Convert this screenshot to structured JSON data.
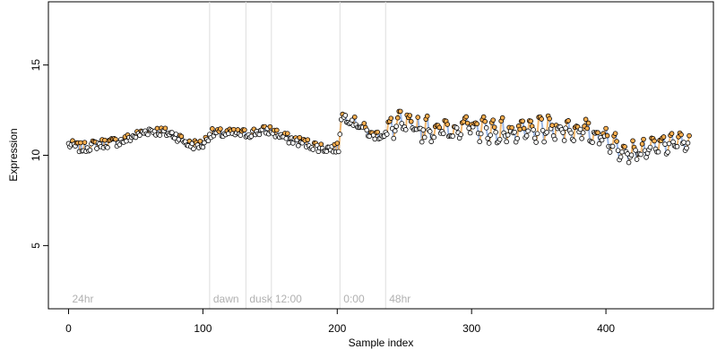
{
  "chart_data": {
    "type": "scatter",
    "xlabel": "Sample index",
    "ylabel": "Expression",
    "xlim": [
      -15,
      480
    ],
    "ylim": [
      1.5,
      18.5
    ],
    "x_ticks": [
      0,
      100,
      200,
      300,
      400
    ],
    "y_ticks": [
      5,
      10,
      15
    ],
    "grid": false,
    "period_markers": [
      {
        "label": "24hr",
        "x": 0,
        "line": false
      },
      {
        "label": "dawn",
        "x": 105,
        "line": true
      },
      {
        "label": "dusk",
        "x": 132,
        "line": true
      },
      {
        "label": "12:00",
        "x": 151,
        "line": true
      },
      {
        "label": "0:00",
        "x": 202,
        "line": true
      },
      {
        "label": "48hr",
        "x": 236,
        "line": true
      }
    ],
    "anchors": [
      [
        0,
        10.6
      ],
      [
        10,
        10.4
      ],
      [
        20,
        10.6
      ],
      [
        30,
        10.7
      ],
      [
        40,
        10.8
      ],
      [
        50,
        11.1
      ],
      [
        60,
        11.4
      ],
      [
        70,
        11.3
      ],
      [
        80,
        11.1
      ],
      [
        90,
        10.6
      ],
      [
        100,
        10.6
      ],
      [
        105,
        11.2
      ],
      [
        115,
        11.2
      ],
      [
        125,
        11.2
      ],
      [
        132,
        11.2
      ],
      [
        140,
        11.3
      ],
      [
        150,
        11.4
      ],
      [
        160,
        11.0
      ],
      [
        170,
        10.8
      ],
      [
        180,
        10.6
      ],
      [
        190,
        10.4
      ],
      [
        201,
        10.4
      ],
      [
        203,
        12.2
      ],
      [
        210,
        12.0
      ],
      [
        220,
        11.5
      ],
      [
        225,
        11.1
      ],
      [
        236,
        11.2
      ],
      [
        245,
        11.8
      ],
      [
        260,
        11.5
      ],
      [
        280,
        11.4
      ],
      [
        300,
        11.6
      ],
      [
        320,
        11.3
      ],
      [
        340,
        11.3
      ],
      [
        360,
        11.5
      ],
      [
        380,
        11.4
      ],
      [
        400,
        11.0
      ],
      [
        410,
        10.4
      ],
      [
        420,
        10.2
      ],
      [
        430,
        10.3
      ],
      [
        440,
        10.6
      ],
      [
        462,
        10.8
      ]
    ],
    "n_points": 463,
    "colors": {
      "points_fill_low": "#ffffff",
      "points_fill_high": "#ffb050",
      "point_stroke": "#000000",
      "fit_up": "#f0a040",
      "fit_down": "#7aa0e0",
      "period_lines": "#dddddd",
      "period_text": "#b0b0b0",
      "axis": "#000000"
    }
  }
}
